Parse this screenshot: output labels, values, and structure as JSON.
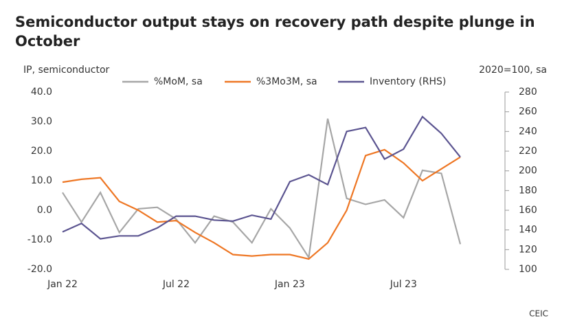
{
  "chart_data": {
    "type": "line",
    "title": "Semiconductor output stays on recovery path despite plunge in October",
    "y_label": "IP, semiconductor",
    "y2_label": "2020=100, sa",
    "source": "CEIC",
    "categories": [
      "Jan 22",
      null,
      null,
      null,
      null,
      null,
      "Jul 22",
      null,
      null,
      null,
      null,
      null,
      "Jan 23",
      null,
      null,
      null,
      null,
      null,
      "Jul 23",
      null,
      null,
      null
    ],
    "series": [
      {
        "name": "%MoM, sa",
        "color": "#a6a6a6",
        "values": [
          6,
          -4,
          6,
          -7.5,
          0.5,
          1,
          -3,
          -11,
          -2,
          -4,
          -11,
          0.5,
          -6,
          -16,
          31,
          4,
          2,
          3.5,
          -2.5,
          13.5,
          12.5,
          -11.5
        ]
      },
      {
        "name": "%3Mo3M, sa",
        "color": "#ee7623",
        "values": [
          9.5,
          10.5,
          11,
          3,
          0,
          -4,
          -3.5,
          -7.5,
          -11,
          -15,
          -15.5,
          -15,
          -15,
          -16.5,
          -11,
          0,
          18.5,
          20.5,
          16,
          10,
          14,
          18
        ]
      },
      {
        "name": "Inventory (RHS)",
        "color": "#5b5490",
        "axis": "y2",
        "values": [
          138,
          146.7,
          131,
          134,
          134,
          142,
          154,
          154,
          150,
          149,
          155,
          151,
          189,
          196,
          186,
          240,
          244,
          212,
          222,
          255,
          238,
          214
        ]
      }
    ],
    "ylim": [
      -20,
      40
    ],
    "yticks": [
      {
        "value": -20,
        "label": "-20.0"
      },
      {
        "value": -10,
        "label": "-10.0"
      },
      {
        "value": 0,
        "label": "0.0"
      },
      {
        "value": 10,
        "label": "10.0"
      },
      {
        "value": 20,
        "label": "20.0"
      },
      {
        "value": 30,
        "label": "30.0"
      },
      {
        "value": 40,
        "label": "40.0"
      }
    ],
    "y2lim": [
      100,
      280
    ],
    "y2ticks": [
      100,
      120,
      140,
      160,
      180,
      200,
      220,
      240,
      260,
      280
    ],
    "legend": "top"
  }
}
